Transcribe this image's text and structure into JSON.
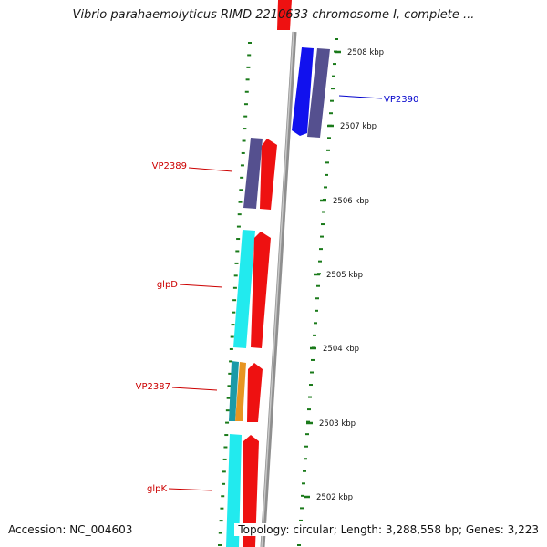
{
  "title": "Vibrio parahaemolyticus RIMD 2210633 chromosome I, complete ...",
  "footer": {
    "accession": "Accession: NC_004603",
    "topology": "Topology: circular; Length: 3,288,558 bp; Genes: 3,223"
  },
  "scale_labels": [
    "2508 kbp",
    "2507 kbp",
    "2506 kbp",
    "2505 kbp",
    "2504 kbp",
    "2503 kbp",
    "2502 kbp"
  ],
  "gene_labels": [
    {
      "text": "VP2390",
      "color": "#0000cc"
    },
    {
      "text": "VP2389",
      "color": "#cc0000"
    },
    {
      "text": "glpD",
      "color": "#cc0000"
    },
    {
      "text": "VP2387",
      "color": "#cc0000"
    },
    {
      "text": "glpK",
      "color": "#cc0000"
    }
  ],
  "colors": {
    "backbone": "#8f8f8f",
    "tick": "#1a7a1a",
    "forward_cds": "#ee1111",
    "reverse_cds": "#1111ee",
    "cog_purple": "#55508f",
    "cog_cyan": "#22eaee",
    "cog_orange": "#e79522",
    "cog_teal": "#1a9aa8"
  }
}
